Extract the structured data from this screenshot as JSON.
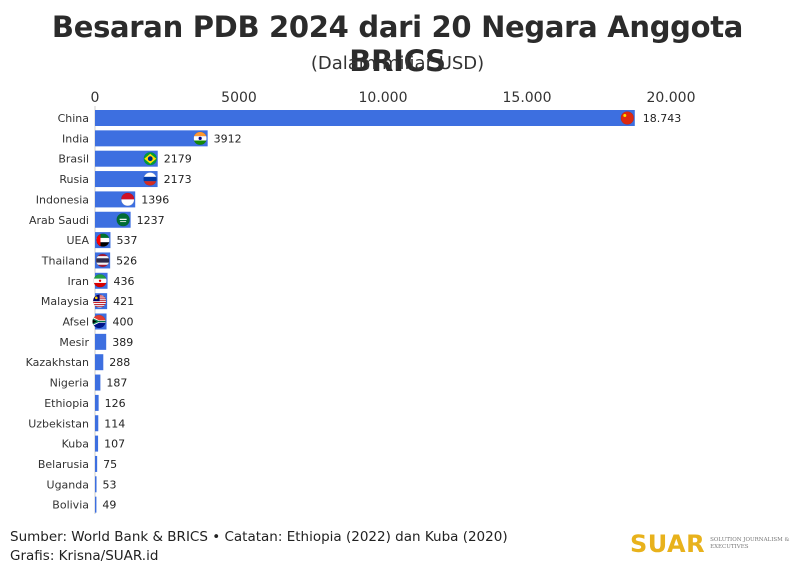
{
  "header": {
    "title": "Besaran PDB 2024 dari 20 Negara Anggota BRICS",
    "subtitle": "(Dalam miliar USD)"
  },
  "footer": {
    "source": "Sumber: World Bank & BRICS • Catatan: Ethiopia (2022) dan Kuba (2020)",
    "credit": "Grafis: Krisna/SUAR.id"
  },
  "brand": {
    "name": "SUAR",
    "tagline": "SOLUTION JOURNALISM & EXECUTIVES"
  },
  "colors": {
    "bar": "#3d6fe0",
    "brand": "#e8b21c"
  },
  "chart_data": {
    "type": "bar",
    "orientation": "horizontal",
    "xlim": [
      0,
      20000
    ],
    "x_ticks": [
      "0",
      "5000",
      "10.000",
      "15.000",
      "20.000"
    ],
    "x_axis_position": "top",
    "grid": false,
    "legend": "none",
    "categories": [
      "China",
      "India",
      "Brasil",
      "Rusia",
      "Indonesia",
      "Arab Saudi",
      "UEA",
      "Thailand",
      "Iran",
      "Malaysia",
      "Afsel",
      "Mesir",
      "Kazakhstan",
      "Nigeria",
      "Ethiopia",
      "Uzbekistan",
      "Kuba",
      "Belarusia",
      "Uganda",
      "Bolivia"
    ],
    "values": [
      18743,
      3912,
      2179,
      2173,
      1396,
      1237,
      537,
      526,
      436,
      421,
      400,
      389,
      288,
      187,
      126,
      114,
      107,
      75,
      53,
      49
    ],
    "value_labels": [
      "18.743",
      "3912",
      "2179",
      "2173",
      "1396",
      "1237",
      "537",
      "526",
      "436",
      "421",
      "400",
      "389",
      "288",
      "187",
      "126",
      "114",
      "107",
      "75",
      "53",
      "49"
    ],
    "flag_icons": [
      "china-flag-icon",
      "india-flag-icon",
      "brazil-flag-icon",
      "russia-flag-icon",
      "indonesia-flag-icon",
      "saudi-arabia-flag-icon",
      "uae-flag-icon",
      "thailand-flag-icon",
      "iran-flag-icon",
      "malaysia-flag-icon",
      "south-africa-flag-icon",
      "",
      "",
      "",
      "",
      "",
      "",
      "",
      "",
      ""
    ]
  }
}
